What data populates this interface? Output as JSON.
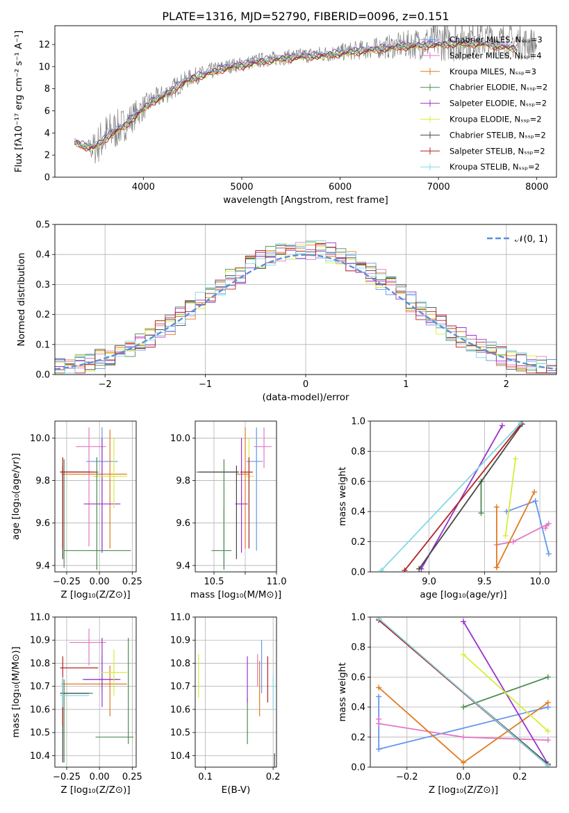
{
  "figure": {
    "title": "PLATE=1316, MJD=52790, FIBERID=0096, z=0.151"
  },
  "chart_data": [
    {
      "id": "spectrum",
      "type": "line",
      "xlabel": "wavelength [Angstrom, rest frame]",
      "ylabel": "Flux [fλ10⁻¹⁷ erg cm⁻² s⁻¹ A⁻¹]",
      "xlim": [
        3100,
        8200
      ],
      "ylim": [
        0,
        13.7
      ],
      "xticks": [
        4000,
        5000,
        6000,
        7000,
        8000
      ],
      "yticks": [
        0,
        2,
        4,
        6,
        8,
        10,
        12
      ],
      "grid": false,
      "legend_placement": "top-right",
      "data_curve": {
        "name": "observed spectrum",
        "color": "#7f7f7f",
        "x": [
          3300,
          3400,
          3500,
          3600,
          3700,
          3800,
          3900,
          4000,
          4100,
          4200,
          4300,
          4400,
          4500,
          4600,
          4700,
          4800,
          4900,
          5000,
          5200,
          5400,
          5600,
          5800,
          6000,
          6200,
          6400,
          6600,
          6800,
          7000,
          7200,
          7400,
          7600,
          7800,
          8000
        ],
        "y": [
          3.2,
          2.7,
          2.6,
          3.6,
          4.2,
          4.7,
          5.5,
          6.3,
          7.0,
          7.4,
          8.0,
          8.6,
          9.1,
          9.3,
          9.6,
          9.9,
          10.1,
          10.2,
          10.6,
          10.8,
          11.0,
          11.1,
          11.3,
          11.5,
          11.7,
          11.9,
          12.1,
          12.3,
          12.4,
          12.5,
          12.4,
          12.2,
          12.0
        ],
        "noise_amplitude": [
          0.3,
          0.3,
          1.6,
          2.2,
          1.9,
          1.6,
          1.4,
          1.2,
          1.0,
          1.0,
          1.0,
          0.9,
          0.8,
          0.8,
          0.8,
          0.7,
          0.7,
          0.7,
          0.7,
          0.7,
          0.7,
          0.8,
          0.8,
          0.9,
          1.0,
          1.2,
          1.5,
          1.8,
          2.0,
          1.8,
          1.6,
          1.6,
          1.5
        ]
      },
      "series": [
        {
          "name": "Chabrier MILES, Nₛₛₚ=3",
          "color": "#6495ed",
          "offset": 0.0
        },
        {
          "name": "Salpeter MILES, Nₛₛₚ=4",
          "color": "#e377c2",
          "offset": 0.1
        },
        {
          "name": "Kroupa MILES, Nₛₛₚ=3",
          "color": "#e07b1f",
          "offset": -0.1
        },
        {
          "name": "Chabrier ELODIE, Nₛₛₚ=2",
          "color": "#4d8a52",
          "offset": 0.05
        },
        {
          "name": "Salpeter ELODIE, Nₛₛₚ=2",
          "color": "#9932cc",
          "offset": 0.15
        },
        {
          "name": "Kroupa ELODIE, Nₛₛₚ=2",
          "color": "#d4ed3a",
          "offset": -0.05
        },
        {
          "name": "Chabrier STELIB, Nₛₛₚ=2",
          "color": "#454545",
          "offset": 0.0
        },
        {
          "name": "Salpeter STELIB, Nₛₛₚ=2",
          "color": "#b22222",
          "offset": -0.15
        },
        {
          "name": "Kroupa STELIB, Nₛₛₚ=2",
          "color": "#7fd9e6",
          "offset": 0.08
        }
      ],
      "model_x": [
        3300,
        3400,
        3500,
        3600,
        3700,
        3800,
        3900,
        4000,
        4100,
        4200,
        4300,
        4400,
        4500,
        4600,
        4700,
        4800,
        4900,
        5000,
        5200,
        5400,
        5600,
        5800,
        6000,
        6200,
        6400,
        6600,
        6800,
        7000,
        7200,
        7400,
        7600,
        7800
      ],
      "model_y": [
        3.2,
        2.8,
        2.7,
        3.4,
        4.1,
        4.6,
        5.4,
        6.2,
        6.9,
        7.3,
        7.9,
        8.5,
        9.0,
        9.2,
        9.5,
        9.8,
        10.0,
        10.1,
        10.5,
        10.7,
        10.9,
        11.0,
        11.2,
        11.4,
        11.6,
        11.8,
        11.9,
        12.0,
        12.1,
        12.1,
        11.9,
        11.6
      ]
    },
    {
      "id": "residuals",
      "type": "line",
      "xlabel": "(data-model)/error",
      "ylabel": "Normed distribution",
      "xlim": [
        -2.5,
        2.5
      ],
      "ylim": [
        0,
        0.5
      ],
      "xticks": [
        -2,
        -1,
        0,
        1,
        2
      ],
      "yticks": [
        0.0,
        0.1,
        0.2,
        0.3,
        0.4,
        0.5
      ],
      "grid": true,
      "legend_placement": "top-right",
      "gaussian_label": "𝒩(0, 1)",
      "gaussian_color": "#5b8fd4",
      "bin_width": 0.1,
      "colors": [
        "#6495ed",
        "#e377c2",
        "#e07b1f",
        "#4d8a52",
        "#9932cc",
        "#d4ed3a",
        "#454545",
        "#b22222",
        "#7fd9e6"
      ]
    },
    {
      "id": "age-vs-z",
      "type": "scatter",
      "xlabel": "Z [log₁₀(Z/Z⊙)]",
      "ylabel": "age  [log₁₀(age/yr)]",
      "xlim": [
        -0.34,
        0.28
      ],
      "ylim": [
        9.37,
        10.08
      ],
      "xticks": [
        -0.25,
        0.0,
        0.25
      ],
      "xticklabels": [
        "−0.25",
        "0.00",
        "0.25"
      ],
      "yticks": [
        9.4,
        9.6,
        9.8,
        10.0
      ],
      "grid": true,
      "points": [
        {
          "color": "#6495ed",
          "x": 0.02,
          "xerr": [
            0.12,
            0.12
          ],
          "y": 9.89,
          "yerr": [
            0.42,
            0.16
          ]
        },
        {
          "color": "#e377c2",
          "x": -0.08,
          "xerr": [
            0.1,
            0.13
          ],
          "y": 9.96,
          "yerr": [
            0.47,
            0.09
          ]
        },
        {
          "color": "#e07b1f",
          "x": 0.08,
          "xerr": [
            0.37,
            0.13
          ],
          "y": 9.83,
          "yerr": [
            0.35,
            0.21
          ]
        },
        {
          "color": "#4d8a52",
          "x": -0.27,
          "xerr": [
            0.02,
            0.22
          ],
          "y": 9.84,
          "yerr": [
            0.45,
            0.06
          ]
        },
        {
          "color": "#9932cc",
          "x": 0.02,
          "xerr": [
            0.14,
            0.14
          ],
          "y": 9.69,
          "yerr": [
            0.23,
            0.31
          ]
        },
        {
          "color": "#d4ed3a",
          "x": 0.11,
          "xerr": [
            0.16,
            0.1
          ],
          "y": 9.82,
          "yerr": [
            0.15,
            0.18
          ]
        },
        {
          "color": "#454545",
          "x": -0.28,
          "xerr": [
            0.02,
            0.2
          ],
          "y": 9.84,
          "yerr": [
            0.41,
            0.03
          ]
        },
        {
          "color": "#b22222",
          "x": -0.28,
          "xerr": [
            0.02,
            0.27
          ],
          "y": 9.84,
          "yerr": [
            0.36,
            0.07
          ]
        },
        {
          "color": "#4d8a52",
          "x": -0.02,
          "xerr": [
            0.25,
            0.26
          ],
          "y": 9.47,
          "yerr": [
            0.09,
            0.44
          ]
        }
      ]
    },
    {
      "id": "age-vs-mass",
      "type": "scatter",
      "xlabel": "mass [log₁₀(M/M⊙)]",
      "ylabel": "",
      "xlim": [
        10.35,
        11.0
      ],
      "ylim": [
        9.37,
        10.08
      ],
      "xticks": [
        10.5,
        10.75,
        11.0
      ],
      "xticklabels": [
        "10.5",
        "",
        "11.0"
      ],
      "yticks": [
        9.4,
        9.6,
        9.8,
        10.0
      ],
      "grid": true,
      "points": [
        {
          "color": "#6495ed",
          "x": 10.84,
          "xerr": [
            0.08,
            0.05
          ],
          "y": 9.89,
          "yerr": [
            0.42,
            0.16
          ]
        },
        {
          "color": "#e377c2",
          "x": 10.9,
          "xerr": [
            0.08,
            0.06
          ],
          "y": 9.96,
          "yerr": [
            0.1,
            0.09
          ]
        },
        {
          "color": "#e07b1f",
          "x": 10.75,
          "xerr": [
            0.07,
            0.03
          ],
          "y": 9.83,
          "yerr": [
            0.35,
            0.22
          ]
        },
        {
          "color": "#4d8a52",
          "x": 10.58,
          "xerr": [
            0.22,
            0.12
          ],
          "y": 9.84,
          "yerr": [
            0.45,
            0.06
          ]
        },
        {
          "color": "#9932cc",
          "x": 10.72,
          "xerr": [
            0.05,
            0.05
          ],
          "y": 9.69,
          "yerr": [
            0.23,
            0.31
          ]
        },
        {
          "color": "#d4ed3a",
          "x": 10.78,
          "xerr": [
            0.03,
            0.04
          ],
          "y": 9.82,
          "yerr": [
            0.15,
            0.18
          ]
        },
        {
          "color": "#454545",
          "x": 10.68,
          "xerr": [
            0.3,
            0.02
          ],
          "y": 9.84,
          "yerr": [
            0.41,
            0.03
          ]
        },
        {
          "color": "#b22222",
          "x": 10.78,
          "xerr": [
            0.07,
            0.03
          ],
          "y": 9.84,
          "yerr": [
            0.36,
            0.07
          ]
        },
        {
          "color": "#4d8a52",
          "x": 10.58,
          "xerr": [
            0.1,
            0.06
          ],
          "y": 9.47,
          "yerr": [
            0.09,
            0.2
          ]
        }
      ]
    },
    {
      "id": "massweight-vs-age",
      "type": "line",
      "xlabel": "age  [log₁₀(age/yr)]",
      "ylabel": "mass weight",
      "xlim": [
        8.47,
        10.15
      ],
      "ylim": [
        0,
        1
      ],
      "xticks": [
        9.0,
        9.5,
        10.0
      ],
      "yticks": [
        0.0,
        0.2,
        0.4,
        0.6,
        0.8,
        1.0
      ],
      "grid": true,
      "series": [
        {
          "color": "#6495ed",
          "x": [
            9.7,
            9.96,
            10.08
          ],
          "y": [
            0.4,
            0.47,
            0.12
          ]
        },
        {
          "color": "#e377c2",
          "x": [
            9.61,
            9.76,
            10.08,
            10.05
          ],
          "y": [
            0.18,
            0.2,
            0.32,
            0.29
          ]
        },
        {
          "color": "#e07b1f",
          "x": [
            9.61,
            9.61
          ],
          "y": [
            0.43,
            0.03
          ]
        },
        {
          "color": "#e07b1f",
          "x": [
            9.61,
            9.95
          ],
          "y": [
            0.03,
            0.53
          ]
        },
        {
          "color": "#4d8a52",
          "x": [
            9.47,
            9.47
          ],
          "y": [
            0.6,
            0.39
          ]
        },
        {
          "color": "#9932cc",
          "x": [
            8.93,
            9.66
          ],
          "y": [
            0.02,
            0.97
          ]
        },
        {
          "color": "#d4ed3a",
          "x": [
            9.69,
            9.78
          ],
          "y": [
            0.24,
            0.75
          ]
        },
        {
          "color": "#454545",
          "x": [
            8.91,
            9.84
          ],
          "y": [
            0.02,
            0.98
          ]
        },
        {
          "color": "#b22222",
          "x": [
            8.78,
            9.83
          ],
          "y": [
            0.01,
            0.98
          ]
        },
        {
          "color": "#7fd9e6",
          "x": [
            8.57,
            9.83
          ],
          "y": [
            0.01,
            0.99
          ]
        }
      ]
    },
    {
      "id": "mass-vs-z",
      "type": "scatter",
      "xlabel": "Z [log₁₀(Z/Z⊙)]",
      "ylabel": "mass [log₁₀(M/M⊙)]",
      "xlim": [
        -0.34,
        0.28
      ],
      "ylim": [
        10.35,
        11.0
      ],
      "xticks": [
        -0.25,
        0.0,
        0.25
      ],
      "xticklabels": [
        "−0.25",
        "0.00",
        "0.25"
      ],
      "yticks": [
        10.4,
        10.5,
        10.6,
        10.7,
        10.8,
        10.9,
        11.0
      ],
      "grid": true,
      "points": [
        {
          "color": "#6495ed",
          "x": 0.02,
          "xerr": [
            0.15,
            0.12
          ],
          "y": 10.73,
          "yerr": [
            0.06,
            0.1
          ]
        },
        {
          "color": "#e377c2",
          "x": -0.08,
          "xerr": [
            0.15,
            0.13
          ],
          "y": 10.89,
          "yerr": [
            0.1,
            0.06
          ]
        },
        {
          "color": "#e07b1f",
          "x": 0.08,
          "xerr": [
            0.37,
            0.13
          ],
          "y": 10.71,
          "yerr": [
            0.14,
            0.08
          ]
        },
        {
          "color": "#4d8a52",
          "x": -0.27,
          "xerr": [
            0.02,
            0.22
          ],
          "y": 10.67,
          "yerr": [
            0.3,
            0.06
          ]
        },
        {
          "color": "#9932cc",
          "x": 0.02,
          "xerr": [
            0.14,
            0.14
          ],
          "y": 10.73,
          "yerr": [
            0.12,
            0.18
          ]
        },
        {
          "color": "#d4ed3a",
          "x": 0.11,
          "xerr": [
            0.1,
            0.1
          ],
          "y": 10.76,
          "yerr": [
            0.1,
            0.1
          ]
        },
        {
          "color": "#454545",
          "x": -0.28,
          "xerr": [
            0.02,
            0.2
          ],
          "y": 10.67,
          "yerr": [
            0.3,
            0.06
          ]
        },
        {
          "color": "#b22222",
          "x": -0.28,
          "xerr": [
            0.02,
            0.27
          ],
          "y": 10.78,
          "yerr": [
            0.25,
            0.05
          ]
        },
        {
          "color": "#4d8a52",
          "x": 0.22,
          "xerr": [
            0.25,
            0.04
          ],
          "y": 10.48,
          "yerr": [
            0.03,
            0.43
          ]
        },
        {
          "color": "#7fd9e6",
          "x": -0.28,
          "xerr": [
            0.02,
            0.2
          ],
          "y": 10.66,
          "yerr": [
            0.05,
            0.08
          ]
        }
      ]
    },
    {
      "id": "mass-vs-ebv",
      "type": "scatter",
      "xlabel": "E(B-V)",
      "ylabel": "",
      "xlim": [
        0.085,
        0.205
      ],
      "ylim": [
        10.35,
        11.0
      ],
      "xticks": [
        0.1,
        0.2
      ],
      "xticklabels": [
        "0.1",
        "0.2"
      ],
      "yticks": [
        10.4,
        10.5,
        10.6,
        10.7,
        10.8,
        10.9,
        11.0
      ],
      "grid": true,
      "points": [
        {
          "color": "#d4ed3a",
          "x": 0.09,
          "y": 10.75,
          "yerr": [
            0.1,
            0.09
          ]
        },
        {
          "color": "#4d8a52",
          "x": 0.162,
          "y": 10.55,
          "yerr": [
            0.1,
            0.1
          ]
        },
        {
          "color": "#9932cc",
          "x": 0.162,
          "y": 10.73,
          "yerr": [
            0.1,
            0.1
          ]
        },
        {
          "color": "#e377c2",
          "x": 0.177,
          "y": 10.77,
          "yerr": [
            0.07,
            0.07
          ]
        },
        {
          "color": "#e07b1f",
          "x": 0.18,
          "y": 10.72,
          "yerr": [
            0.15,
            0.09
          ]
        },
        {
          "color": "#6495ed",
          "x": 0.183,
          "y": 10.78,
          "yerr": [
            0.11,
            0.12
          ]
        },
        {
          "color": "#b22222",
          "x": 0.192,
          "y": 10.73,
          "yerr": [
            0.1,
            0.1
          ]
        },
        {
          "color": "#7fd9e6",
          "x": 0.2,
          "y": 10.69,
          "yerr": [
            0.09,
            0.06
          ]
        },
        {
          "color": "#454545",
          "x": 0.202,
          "y": 10.39,
          "yerr": [
            0.04,
            0.02
          ]
        }
      ]
    },
    {
      "id": "massweight-vs-z",
      "type": "line",
      "xlabel": "Z [log₁₀(Z/Z⊙)]",
      "ylabel": "mass weight",
      "xlim": [
        -0.33,
        0.33
      ],
      "ylim": [
        0,
        1
      ],
      "xticks": [
        -0.2,
        0.0,
        0.2
      ],
      "xticklabels": [
        "−0.2",
        "0.0",
        "0.2"
      ],
      "yticks": [
        0.0,
        0.2,
        0.4,
        0.6,
        0.8,
        1.0
      ],
      "grid": true,
      "series": [
        {
          "color": "#6495ed",
          "x": [
            -0.3,
            -0.3,
            0.3,
            0.3
          ],
          "y": [
            0.47,
            0.12,
            0.4,
            0.4
          ]
        },
        {
          "color": "#e377c2",
          "x": [
            -0.3,
            -0.3,
            0.0,
            0.3
          ],
          "y": [
            0.32,
            0.29,
            0.2,
            0.18
          ]
        },
        {
          "color": "#e07b1f",
          "x": [
            -0.3,
            0.0,
            0.3
          ],
          "y": [
            0.53,
            0.03,
            0.43
          ]
        },
        {
          "color": "#4d8a52",
          "x": [
            0.0,
            0.3
          ],
          "y": [
            0.4,
            0.6
          ]
        },
        {
          "color": "#9932cc",
          "x": [
            0.0,
            0.3
          ],
          "y": [
            0.97,
            0.02
          ]
        },
        {
          "color": "#d4ed3a",
          "x": [
            0.0,
            0.3
          ],
          "y": [
            0.75,
            0.24
          ]
        },
        {
          "color": "#454545",
          "x": [
            -0.3,
            0.3
          ],
          "y": [
            0.98,
            0.02
          ]
        },
        {
          "color": "#b22222",
          "x": [
            -0.3,
            0.3
          ],
          "y": [
            0.98,
            0.01
          ]
        },
        {
          "color": "#7fd9e6",
          "x": [
            -0.3,
            0.3
          ],
          "y": [
            0.99,
            0.01
          ]
        }
      ]
    }
  ]
}
